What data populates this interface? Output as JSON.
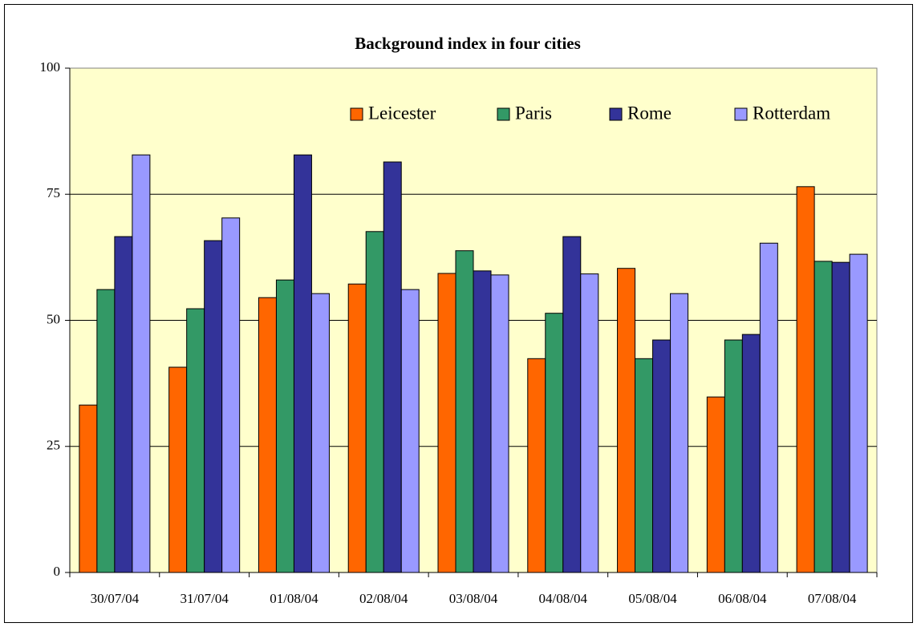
{
  "chart_data": {
    "type": "bar",
    "title": "Background index in four cities",
    "categories": [
      "30/07/04",
      "31/07/04",
      "01/08/04",
      "02/08/04",
      "03/08/04",
      "04/08/04",
      "05/08/04",
      "06/08/04",
      "07/08/04"
    ],
    "series": [
      {
        "name": "Leicester",
        "color": "#ff6600",
        "values": [
          33.2,
          40.7,
          54.5,
          57.2,
          59.3,
          42.4,
          60.3,
          34.8,
          76.5
        ]
      },
      {
        "name": "Paris",
        "color": "#339966",
        "values": [
          56.1,
          52.3,
          58.0,
          67.6,
          63.8,
          51.4,
          42.4,
          46.1,
          61.7
        ]
      },
      {
        "name": "Rome",
        "color": "#333399",
        "values": [
          66.6,
          65.8,
          82.8,
          81.4,
          59.8,
          66.6,
          46.1,
          47.2,
          61.5
        ]
      },
      {
        "name": "Rotterdam",
        "color": "#9999ff",
        "values": [
          82.8,
          70.3,
          55.3,
          56.1,
          59.0,
          59.2,
          55.3,
          65.3,
          63.1
        ]
      }
    ],
    "ylim": [
      0,
      100
    ],
    "yticks": [
      0,
      25,
      50,
      75,
      100
    ],
    "grid": true,
    "legend": "top-right"
  }
}
